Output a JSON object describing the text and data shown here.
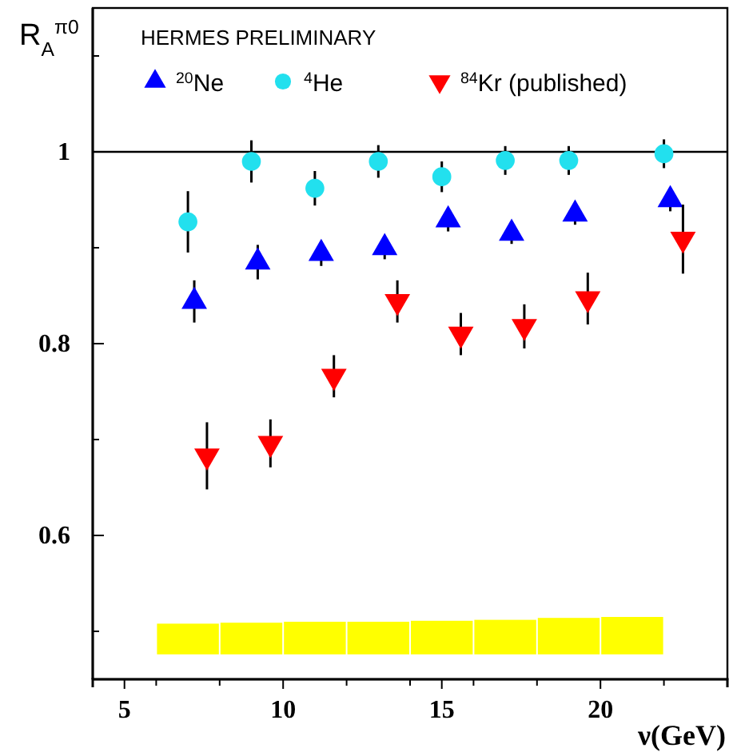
{
  "chart_data": {
    "type": "scatter",
    "xlabel": "ν(GeV)",
    "ylabel": "R$_{A}$$^{π0}$",
    "annotations": [
      "HERMES PRELIMINARY"
    ],
    "xlim": [
      4,
      24
    ],
    "xticks": [
      5,
      {
        "value": 6,
        "label": null
      },
      {
        "value": 8,
        "label": null
      },
      10,
      {
        "value": 12,
        "label": null
      },
      {
        "value": 14,
        "label": null
      },
      15,
      {
        "value": 16,
        "label": null
      },
      {
        "value": 18,
        "label": null
      },
      20,
      {
        "value": 22,
        "label": null
      }
    ],
    "ylim": [
      0.45,
      1.15
    ],
    "yticks": [
      {
        "value": 0.5,
        "label": null
      },
      0.6,
      {
        "value": 0.7,
        "label": null
      },
      0.8,
      {
        "value": 0.9,
        "label": null
      },
      1,
      {
        "value": 1.1,
        "label": null
      }
    ],
    "legend": "top",
    "grid": false,
    "ref_lines": [
      {
        "axis": "y",
        "value": 1,
        "color": "#000000",
        "line_style": "solid"
      }
    ],
    "series": [
      {
        "name": "$^{20}$Ne",
        "marker": "triangle",
        "color": "#0000ff",
        "x": [
          7.2,
          9.2,
          11.2,
          13.2,
          15.2,
          17.2,
          19.2,
          22.2
        ],
        "values": [
          0.844,
          0.885,
          0.894,
          0.9,
          0.929,
          0.915,
          0.935,
          0.95
        ],
        "errors": [
          0.022,
          0.018,
          0.013,
          0.012,
          0.012,
          0.011,
          0.011,
          0.012
        ]
      },
      {
        "name": "$^{4}$He",
        "marker": "circle",
        "color": "#22e0ee",
        "x": [
          7,
          9,
          11,
          13,
          15,
          17,
          19,
          22
        ],
        "values": [
          0.927,
          0.99,
          0.962,
          0.99,
          0.974,
          0.991,
          0.991,
          0.998
        ],
        "errors": [
          0.032,
          0.022,
          0.018,
          0.017,
          0.016,
          0.015,
          0.015,
          0.015
        ]
      },
      {
        "name": "$^{84}$Kr (published)",
        "marker": "triangle-down",
        "color": "#ff0000",
        "x": [
          7.6,
          9.6,
          11.6,
          13.6,
          15.6,
          17.6,
          19.6,
          22.6
        ],
        "values": [
          0.683,
          0.696,
          0.766,
          0.844,
          0.81,
          0.818,
          0.847,
          0.909
        ],
        "errors": [
          0.035,
          0.025,
          0.022,
          0.022,
          0.022,
          0.023,
          0.027,
          0.036
        ]
      },
      {
        "type": "bar",
        "color": "#ffff00",
        "x": [
          7,
          9,
          11,
          13,
          15,
          17,
          19,
          21
        ],
        "base": [
          0.476,
          0.476,
          0.476,
          0.476,
          0.476,
          0.476,
          0.476,
          0.476
        ],
        "values": [
          0.032,
          0.033,
          0.034,
          0.034,
          0.035,
          0.036,
          0.038,
          0.039
        ]
      }
    ]
  }
}
